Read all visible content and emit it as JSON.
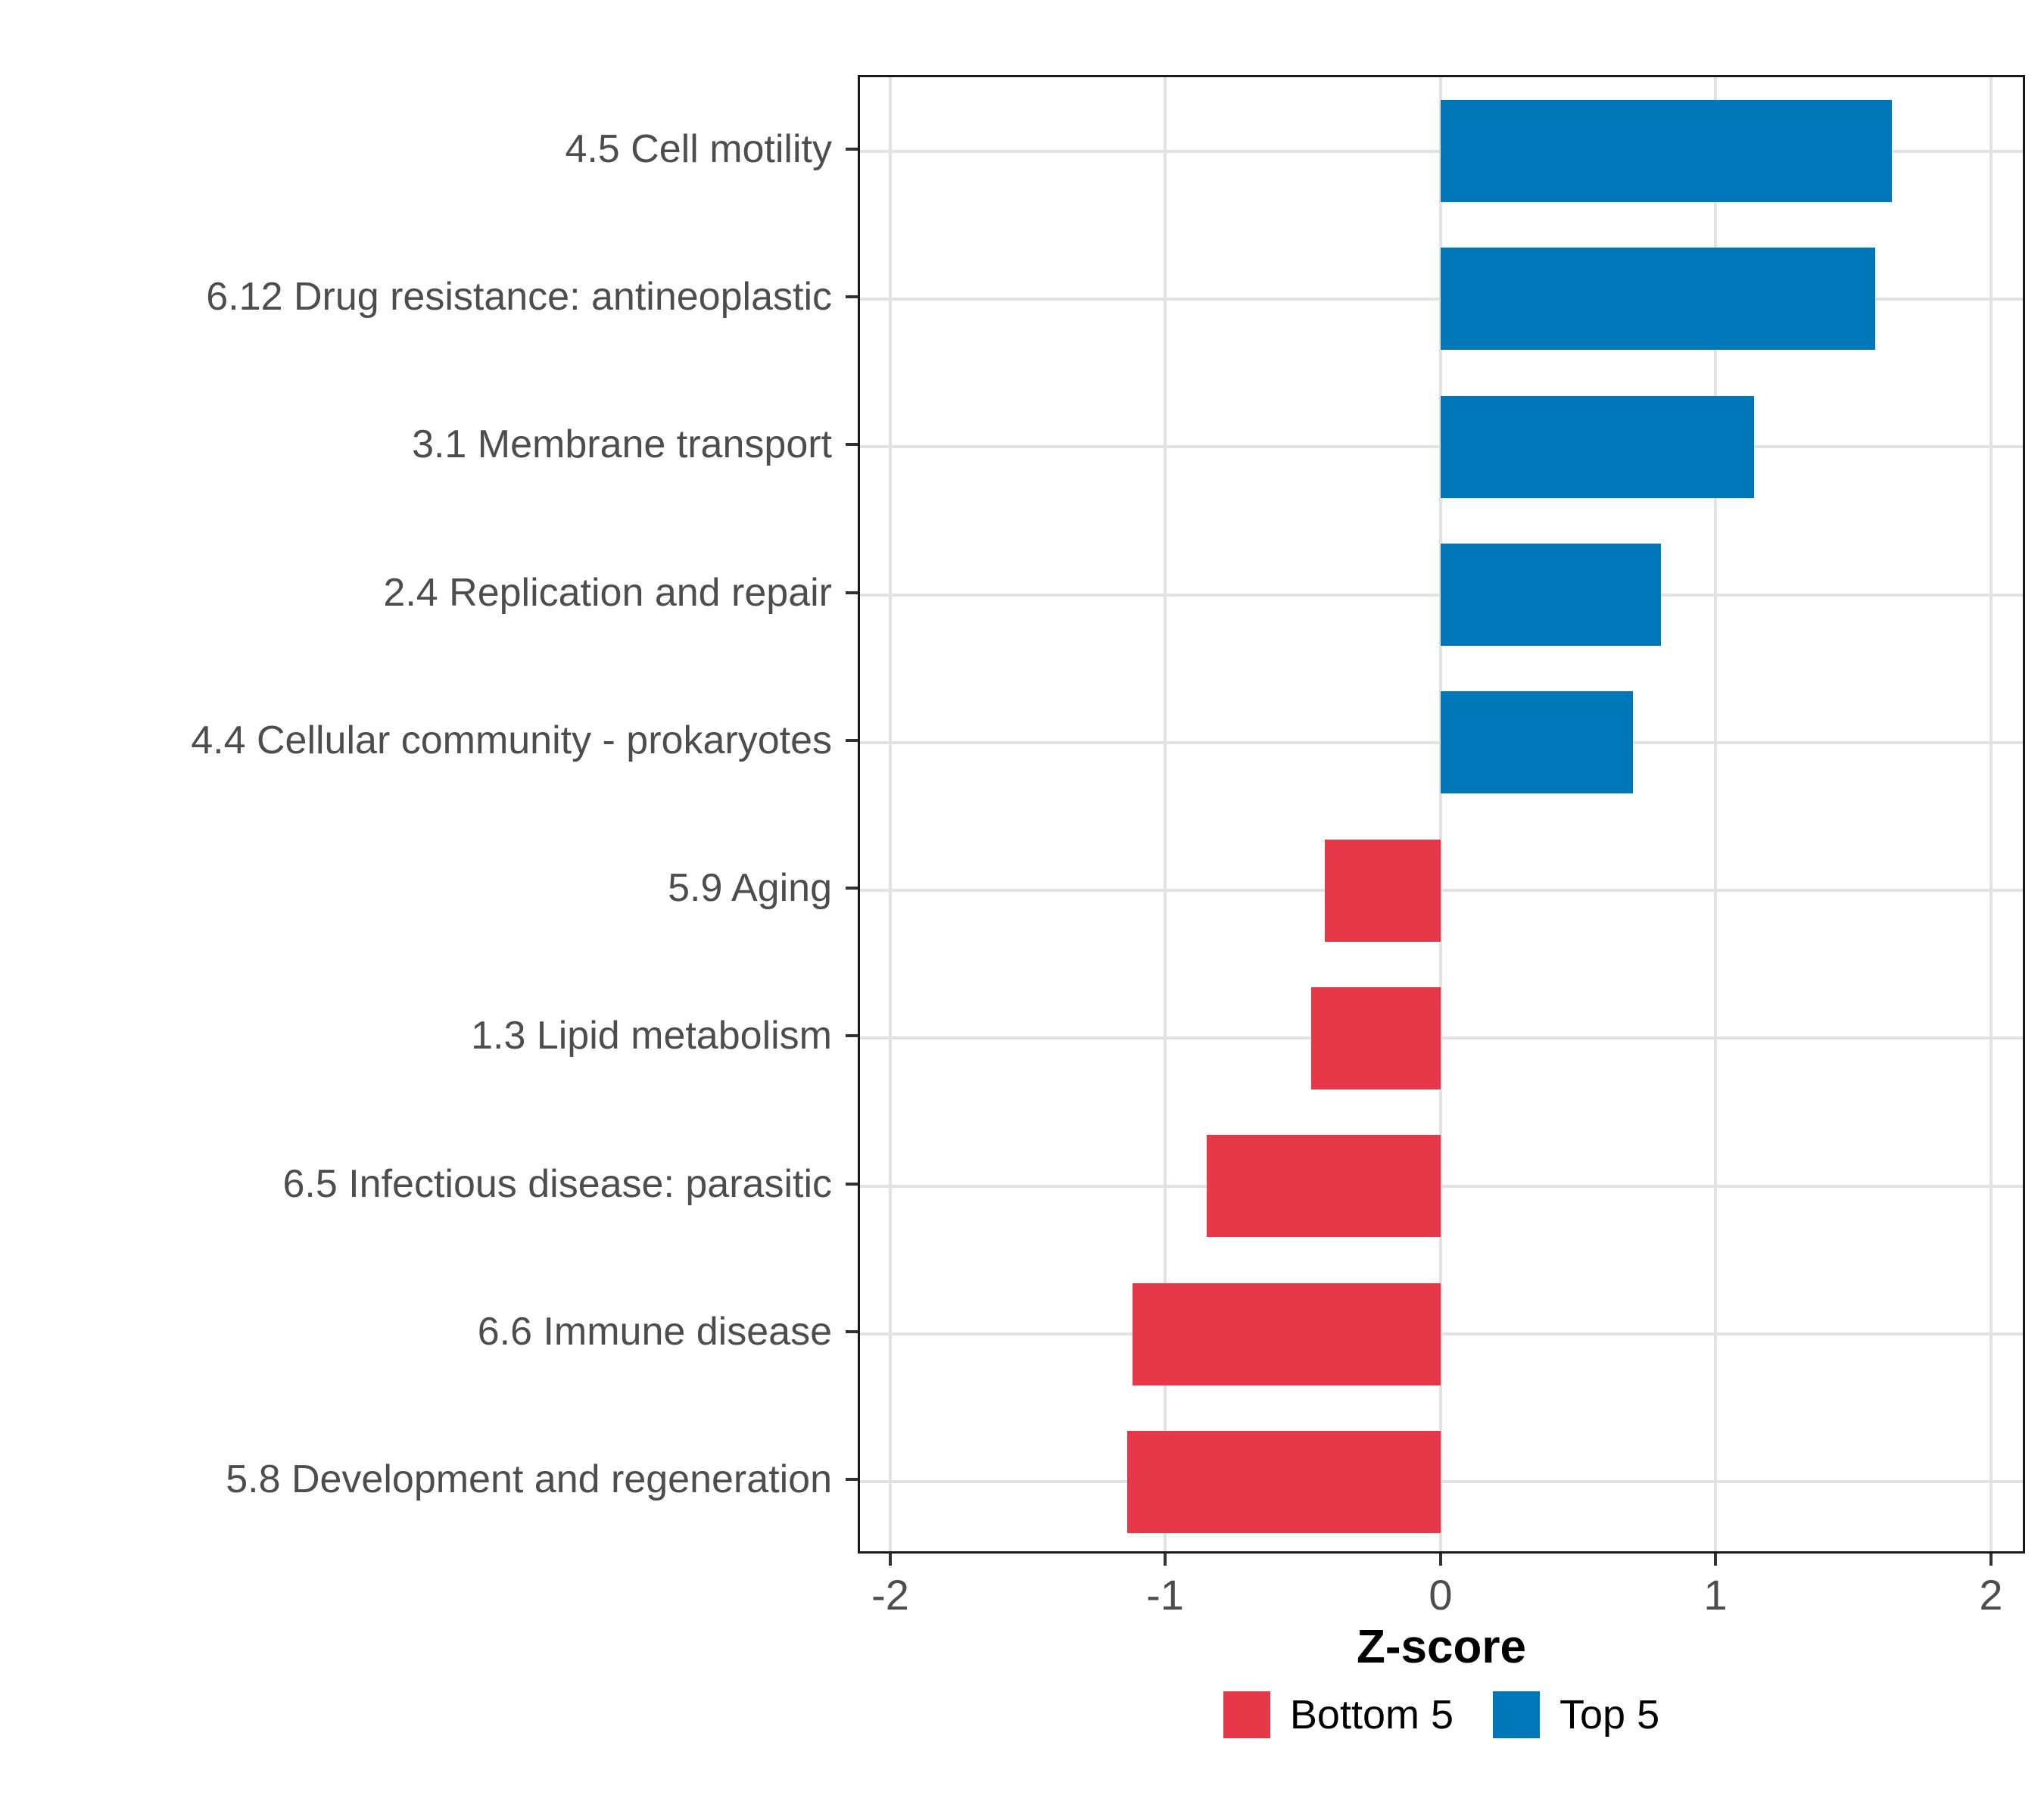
{
  "chart_data": {
    "type": "bar",
    "orientation": "horizontal",
    "title": "",
    "xlabel": "Z-score",
    "ylabel": "",
    "xlim": [
      -2.118,
      2.124
    ],
    "xticks": [
      -2,
      -1,
      0,
      1,
      2
    ],
    "xtick_labels": [
      "-2",
      "-1",
      "0",
      "1",
      "2"
    ],
    "grid": true,
    "bars": [
      {
        "label": "4.5 Cell motility",
        "value": 1.64,
        "group": "Top 5"
      },
      {
        "label": "6.12 Drug resistance: antineoplastic",
        "value": 1.58,
        "group": "Top 5"
      },
      {
        "label": "3.1 Membrane transport",
        "value": 1.14,
        "group": "Top 5"
      },
      {
        "label": "2.4 Replication and repair",
        "value": 0.8,
        "group": "Top 5"
      },
      {
        "label": "4.4 Cellular community - prokaryotes",
        "value": 0.7,
        "group": "Top 5"
      },
      {
        "label": "5.9 Aging",
        "value": -0.42,
        "group": "Bottom 5"
      },
      {
        "label": "1.3 Lipid metabolism",
        "value": -0.47,
        "group": "Bottom 5"
      },
      {
        "label": "6.5 Infectious disease: parasitic",
        "value": -0.85,
        "group": "Bottom 5"
      },
      {
        "label": "6.6 Immune disease",
        "value": -1.12,
        "group": "Bottom 5"
      },
      {
        "label": "5.8 Development and regeneration",
        "value": -1.14,
        "group": "Bottom 5"
      }
    ],
    "legend": {
      "position": "bottom",
      "entries": [
        {
          "label": "Bottom 5",
          "color": "#e7384a"
        },
        {
          "label": "Top 5",
          "color": "#0077b9"
        }
      ]
    },
    "colors": {
      "top5": "#0077b9",
      "bottom5": "#e7384a",
      "grid": "#e2e2e2",
      "panel_border": "#1a1a1a",
      "tick_label": "#4d4d4d",
      "axis_title": "#000000"
    }
  }
}
